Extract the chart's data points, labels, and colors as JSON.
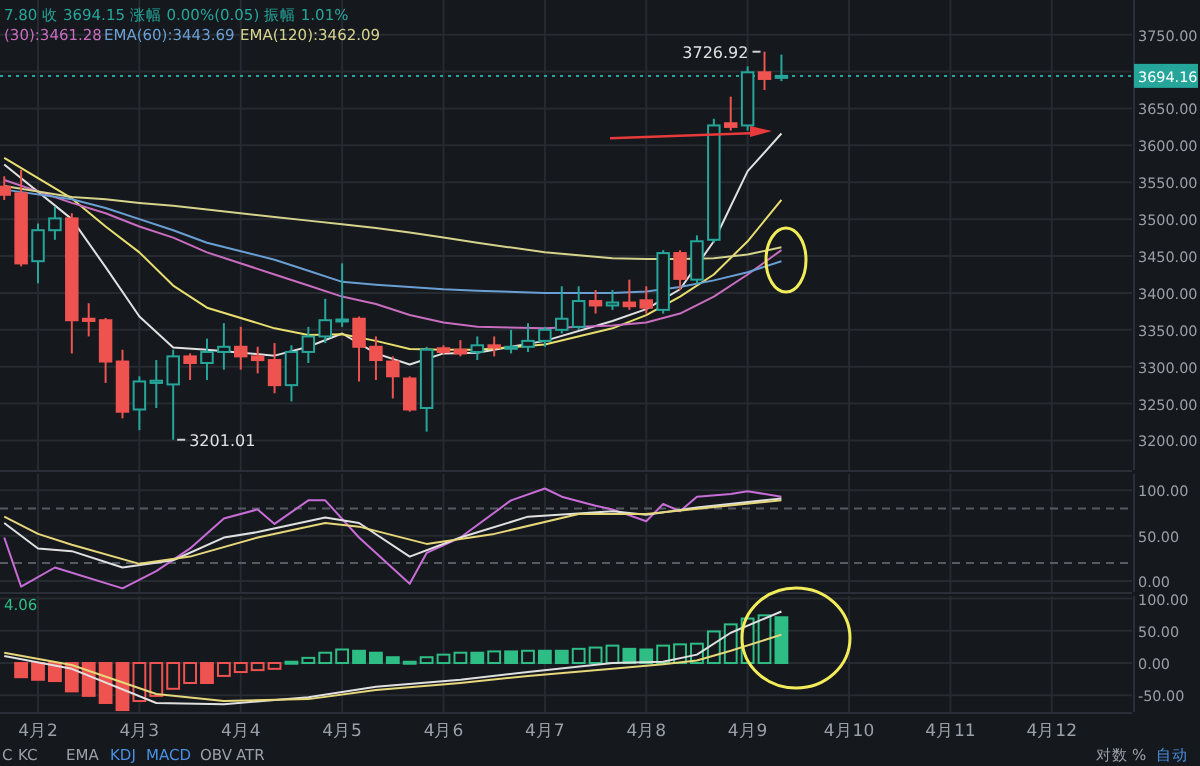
{
  "chart_data": [
    {
      "type": "candlestick",
      "x": [
        "--04-01T16:00",
        "--04-01T20:00",
        "--04-02T00:00",
        "--04-02T04:00",
        "--04-02T08:00",
        "--04-02T12:00",
        "--04-02T16:00",
        "--04-02T20:00",
        "--04-03T00:00",
        "--04-03T04:00",
        "--04-03T08:00",
        "--04-03T12:00",
        "--04-03T16:00",
        "--04-03T20:00",
        "--04-04T00:00",
        "--04-04T04:00",
        "--04-04T08:00",
        "--04-04T12:00",
        "--04-04T16:00",
        "--04-04T20:00",
        "--04-05T00:00",
        "--04-05T04:00",
        "--04-05T08:00",
        "--04-05T12:00",
        "--04-05T16:00",
        "--04-05T20:00",
        "--04-06T00:00",
        "--04-06T04:00",
        "--04-06T08:00",
        "--04-06T12:00",
        "--04-06T16:00",
        "--04-06T20:00",
        "--04-07T00:00",
        "--04-07T04:00",
        "--04-07T08:00",
        "--04-07T12:00",
        "--04-07T16:00",
        "--04-07T20:00",
        "--04-08T00:00",
        "--04-08T04:00",
        "--04-08T08:00",
        "--04-08T12:00",
        "--04-08T16:00",
        "--04-08T20:00",
        "--04-09T00:00",
        "--04-09T04:00",
        "--04-09T08:00"
      ],
      "ohlc": [
        [
          3544,
          3558,
          3526,
          3533
        ],
        [
          3535,
          3567,
          3436,
          3440
        ],
        [
          3443,
          3494,
          3413,
          3485
        ],
        [
          3485,
          3517,
          3472,
          3501
        ],
        [
          3501,
          3508,
          3318,
          3363
        ],
        [
          3365,
          3386,
          3341,
          3362
        ],
        [
          3363,
          3366,
          3278,
          3307
        ],
        [
          3307,
          3323,
          3230,
          3239
        ],
        [
          3242,
          3287,
          3214,
          3280
        ],
        [
          3278,
          3309,
          3244,
          3281
        ],
        [
          3276,
          3323,
          3201.01,
          3314
        ],
        [
          3314,
          3318,
          3282,
          3305
        ],
        [
          3305,
          3338,
          3282,
          3320
        ],
        [
          3320,
          3359,
          3296,
          3327
        ],
        [
          3327,
          3354,
          3296,
          3314
        ],
        [
          3314,
          3327,
          3291,
          3309
        ],
        [
          3309,
          3332,
          3264,
          3275
        ],
        [
          3275,
          3329,
          3253,
          3320
        ],
        [
          3320,
          3354,
          3305,
          3341
        ],
        [
          3341,
          3392,
          3332,
          3363
        ],
        [
          3362,
          3440,
          3354,
          3364
        ],
        [
          3365,
          3368,
          3280,
          3327
        ],
        [
          3327,
          3341,
          3282,
          3309
        ],
        [
          3307,
          3314,
          3257,
          3287
        ],
        [
          3284,
          3287,
          3239,
          3242
        ],
        [
          3244,
          3327,
          3212,
          3323
        ],
        [
          3325,
          3329,
          3317,
          3320
        ],
        [
          3323,
          3336,
          3314,
          3318
        ],
        [
          3320,
          3341,
          3309,
          3329
        ],
        [
          3329,
          3341,
          3314,
          3326
        ],
        [
          3326,
          3350,
          3318,
          3327
        ],
        [
          3327,
          3359,
          3320,
          3335
        ],
        [
          3335,
          3354,
          3327,
          3350
        ],
        [
          3350,
          3409,
          3345,
          3365
        ],
        [
          3354,
          3409,
          3350,
          3389
        ],
        [
          3389,
          3404,
          3372,
          3383
        ],
        [
          3383,
          3404,
          3377,
          3387
        ],
        [
          3387,
          3418,
          3377,
          3382
        ],
        [
          3390,
          3409,
          3372,
          3380
        ],
        [
          3377,
          3458,
          3372,
          3454
        ],
        [
          3454,
          3458,
          3404,
          3419
        ],
        [
          3418,
          3478,
          3412,
          3470
        ],
        [
          3472,
          3636,
          3468,
          3627
        ],
        [
          3630,
          3666,
          3620,
          3625
        ],
        [
          3627,
          3707,
          3620,
          3699
        ],
        [
          3699,
          3726.92,
          3675,
          3690
        ],
        [
          3693,
          3723,
          3687,
          3694.15
        ]
      ],
      "colors": [
        "#ef5350",
        "#ef5350",
        "#26a69a",
        "#26a69a",
        "#ef5350",
        "#ef5350",
        "#ef5350",
        "#ef5350",
        "#26a69a",
        "#26a69a",
        "#26a69a",
        "#ef5350",
        "#26a69a",
        "#26a69a",
        "#ef5350",
        "#ef5350",
        "#ef5350",
        "#26a69a",
        "#26a69a",
        "#26a69a",
        "#26a69a",
        "#ef5350",
        "#ef5350",
        "#ef5350",
        "#ef5350",
        "#26a69a",
        "#ef5350",
        "#ef5350",
        "#26a69a",
        "#ef5350",
        "#26a69a",
        "#26a69a",
        "#26a69a",
        "#26a69a",
        "#26a69a",
        "#ef5350",
        "#26a69a",
        "#ef5350",
        "#ef5350",
        "#26a69a",
        "#ef5350",
        "#26a69a",
        "#26a69a",
        "#ef5350",
        "#26a69a",
        "#ef5350",
        "#26a69a"
      ],
      "series": [
        {
          "type": "line",
          "color": "#e0e0e0",
          "x": [
            "--04-01T16:00",
            "--04-02T08:00",
            "--04-02T16:00",
            "--04-03T00:00",
            "--04-03T08:00",
            "--04-03T16:00",
            "--04-04T08:00",
            "--04-04T16:00",
            "--04-05T00:00",
            "--04-05T08:00",
            "--04-05T16:00",
            "--04-06T00:00",
            "--04-06T08:00",
            "--04-07T00:00",
            "--04-07T16:00",
            "--04-08T00:00",
            "--04-08T08:00",
            "--04-08T16:00",
            "--04-09T00:00",
            "--04-09T08:00"
          ],
          "values": [
            3574,
            3500,
            3435,
            3368,
            3326,
            3323,
            3315,
            3327,
            3345,
            3318,
            3303,
            3318,
            3319,
            3335,
            3362,
            3378,
            3405,
            3470,
            3565,
            3616
          ]
        },
        {
          "type": "line",
          "color": "#e8de6e",
          "x": [
            "--04-01T16:00",
            "--04-02T08:00",
            "--04-02T16:00",
            "--04-03T00:00",
            "--04-03T08:00",
            "--04-03T16:00",
            "--04-04T08:00",
            "--04-04T16:00",
            "--04-05T00:00",
            "--04-05T08:00",
            "--04-05T16:00",
            "--04-06T00:00",
            "--04-06T08:00",
            "--04-07T00:00",
            "--04-07T16:00",
            "--04-08T00:00",
            "--04-08T08:00",
            "--04-08T16:00",
            "--04-09T00:00",
            "--04-09T08:00"
          ],
          "values": [
            3583,
            3528,
            3490,
            3455,
            3410,
            3380,
            3352,
            3343,
            3344,
            3335,
            3324,
            3323,
            3323,
            3330,
            3352,
            3370,
            3395,
            3425,
            3470,
            3526
          ]
        },
        {
          "type": "line",
          "color": "#c86dbf",
          "x": [
            "--04-01T16:00",
            "--04-02T08:00",
            "--04-02T16:00",
            "--04-03T00:00",
            "--04-03T08:00",
            "--04-03T16:00",
            "--04-04T08:00",
            "--04-04T16:00",
            "--04-05T00:00",
            "--04-05T08:00",
            "--04-05T16:00",
            "--04-06T00:00",
            "--04-06T08:00",
            "--04-07T00:00",
            "--04-07T16:00",
            "--04-08T00:00",
            "--04-08T08:00",
            "--04-08T16:00",
            "--04-09T00:00",
            "--04-09T08:00"
          ],
          "values": [
            3553,
            3522,
            3508,
            3490,
            3475,
            3455,
            3425,
            3410,
            3395,
            3385,
            3370,
            3360,
            3354,
            3352,
            3356,
            3360,
            3372,
            3395,
            3425,
            3458
          ]
        },
        {
          "type": "line",
          "color": "#6a9fd4",
          "x": [
            "--04-01T16:00",
            "--04-02T08:00",
            "--04-02T16:00",
            "--04-03T00:00",
            "--04-03T08:00",
            "--04-03T16:00",
            "--04-04T08:00",
            "--04-04T16:00",
            "--04-05T00:00",
            "--04-05T08:00",
            "--04-05T16:00",
            "--04-06T00:00",
            "--04-06T08:00",
            "--04-07T00:00",
            "--04-07T16:00",
            "--04-08T00:00",
            "--04-08T08:00",
            "--04-08T16:00",
            "--04-09T00:00",
            "--04-09T08:00"
          ],
          "values": [
            3540,
            3527,
            3515,
            3500,
            3485,
            3468,
            3445,
            3430,
            3415,
            3411,
            3408,
            3405,
            3403,
            3400,
            3400,
            3402,
            3408,
            3417,
            3428,
            3443
          ]
        },
        {
          "type": "line",
          "color": "#d6d38c",
          "x": [
            "--04-01T16:00",
            "--04-02T08:00",
            "--04-02T16:00",
            "--04-03T00:00",
            "--04-03T08:00",
            "--04-03T16:00",
            "--04-04T08:00",
            "--04-04T16:00",
            "--04-05T00:00",
            "--04-05T08:00",
            "--04-05T16:00",
            "--04-06T00:00",
            "--04-06T08:00",
            "--04-07T00:00",
            "--04-07T16:00",
            "--04-08T00:00",
            "--04-08T08:00",
            "--04-08T16:00",
            "--04-09T00:00",
            "--04-09T08:00"
          ],
          "values": [
            3545,
            3530,
            3527,
            3522,
            3518,
            3513,
            3503,
            3498,
            3493,
            3488,
            3482,
            3475,
            3468,
            3455,
            3447,
            3446,
            3446,
            3447,
            3452,
            3462
          ]
        }
      ],
      "xlim": [
        "--04-01T15:00",
        "--04-12T19:00"
      ],
      "ylim": [
        3160,
        3797
      ],
      "xticks": [
        {
          "value": "--04-02",
          "label": null
        },
        {
          "value": "--04-03",
          "label": null
        },
        {
          "value": "--04-04",
          "label": null
        },
        {
          "value": "--04-05",
          "label": null
        },
        {
          "value": "--04-06",
          "label": null
        },
        {
          "value": "--04-07",
          "label": null
        },
        {
          "value": "--04-08",
          "label": null
        },
        {
          "value": "--04-09",
          "label": null
        },
        {
          "value": "--04-10",
          "label": null
        },
        {
          "value": "--04-11",
          "label": null
        },
        {
          "value": "--04-12",
          "label": null
        }
      ],
      "yticks": [
        {
          "value": 3200,
          "label": "3200.00"
        },
        {
          "value": 3250,
          "label": "3250.00"
        },
        {
          "value": 3300,
          "label": "3300.00"
        },
        {
          "value": 3350,
          "label": "3350.00"
        },
        {
          "value": 3400,
          "label": "3400.00"
        },
        {
          "value": 3450,
          "label": "3450.00"
        },
        {
          "value": 3500,
          "label": "3500.00"
        },
        {
          "value": 3550,
          "label": "3550.00"
        },
        {
          "value": 3600,
          "label": "3600.00"
        },
        {
          "value": 3650,
          "label": "3650.00"
        },
        {
          "value": 3700,
          "label": null
        },
        {
          "value": 3750,
          "label": "3750.00"
        }
      ],
      "ref_lines": [
        {
          "axis": "y",
          "value": 3694.16,
          "label": "3694.16",
          "color": "#26a69a",
          "line_style": "dotted"
        }
      ],
      "annotations": [
        "7.80 收 3694.15 涨幅 0.00%(0.05) 振幅 1.01%",
        "(30):3461.28",
        "EMA(60):3443.69",
        "EMA(120):3462.09",
        {
          "text": "3726.92",
          "x": "--04-09T04:00",
          "y": 3726.92
        },
        {
          "text": "3201.01",
          "x": "--04-03T08:00",
          "y": 3201.01
        }
      ],
      "grid": true,
      "tick_labels": "y"
    },
    {
      "type": "line",
      "series": [
        {
          "color": "#c86dd7",
          "x": [
            "--04-01T16:00",
            "--04-01T20:00",
            "--04-02T04:00",
            "--04-02T20:00",
            "--04-03T04:00",
            "--04-03T12:00",
            "--04-03T20:00",
            "--04-04T04:00",
            "--04-04T08:00",
            "--04-04T16:00",
            "--04-04T20:00",
            "--04-05T04:00",
            "--04-05T16:00",
            "--04-05T20:00",
            "--04-06T04:00",
            "--04-06T16:00",
            "--04-07T00:00",
            "--04-07T04:00",
            "--04-07T12:00",
            "--04-07T16:00",
            "--04-08T00:00",
            "--04-08T04:00",
            "--04-08T08:00",
            "--04-08T12:00",
            "--04-08T20:00",
            "--04-09T00:00",
            "--04-09T08:00"
          ],
          "values": [
            48,
            -6,
            15,
            -8,
            11,
            36,
            69,
            79,
            63,
            89,
            89,
            48,
            -3,
            31,
            48,
            89,
            102,
            93,
            83,
            79,
            66,
            85,
            77,
            93,
            96,
            99,
            93
          ]
        },
        {
          "color": "#e0e0e0",
          "x": [
            "--04-01T16:00",
            "--04-02T00:00",
            "--04-02T08:00",
            "--04-02T20:00",
            "--04-03T08:00",
            "--04-03T20:00",
            "--04-04T04:00",
            "--04-04T20:00",
            "--04-05T04:00",
            "--04-05T16:00",
            "--04-06T04:00",
            "--04-06T20:00",
            "--04-07T16:00",
            "--04-08T00:00",
            "--04-08T12:00",
            "--04-09T08:00"
          ],
          "values": [
            64,
            36,
            33,
            15,
            23,
            48,
            54,
            70,
            64,
            27,
            48,
            71,
            77,
            73,
            81,
            91
          ]
        },
        {
          "color": "#e6d77a",
          "x": [
            "--04-01T16:00",
            "--04-02T00:00",
            "--04-02T08:00",
            "--04-03T00:00",
            "--04-03T12:00",
            "--04-04T04:00",
            "--04-04T20:00",
            "--04-05T04:00",
            "--04-05T20:00",
            "--04-06T12:00",
            "--04-07T08:00",
            "--04-08T00:00",
            "--04-09T08:00"
          ],
          "values": [
            71,
            52,
            40,
            19,
            27,
            48,
            64,
            60,
            41,
            52,
            74,
            74,
            89
          ]
        }
      ],
      "xlim": [
        "--04-01T15:00",
        "--04-12T19:00"
      ],
      "ylim": [
        -12,
        118
      ],
      "xticks": [
        {
          "value": "--04-02",
          "label": null
        },
        {
          "value": "--04-03",
          "label": null
        },
        {
          "value": "--04-04",
          "label": null
        },
        {
          "value": "--04-05",
          "label": null
        },
        {
          "value": "--04-06",
          "label": null
        },
        {
          "value": "--04-07",
          "label": null
        },
        {
          "value": "--04-08",
          "label": null
        },
        {
          "value": "--04-09",
          "label": null
        },
        {
          "value": "--04-10",
          "label": null
        },
        {
          "value": "--04-11",
          "label": null
        },
        {
          "value": "--04-12",
          "label": null
        }
      ],
      "yticks": [
        {
          "value": 0,
          "label": "0.00"
        },
        {
          "value": 50,
          "label": "50.00"
        },
        {
          "value": 100,
          "label": "100.00"
        }
      ],
      "ref_lines": [
        {
          "axis": "y",
          "value": 80,
          "color": "#555a63",
          "line_style": "dashed"
        },
        {
          "axis": "y",
          "value": 20,
          "color": "#555a63",
          "line_style": "dashed"
        }
      ],
      "grid": true,
      "tick_labels": "y"
    },
    {
      "type": "bar",
      "x": [
        "--04-01T20:00",
        "--04-02T00:00",
        "--04-02T04:00",
        "--04-02T08:00",
        "--04-02T12:00",
        "--04-02T16:00",
        "--04-02T20:00",
        "--04-03T00:00",
        "--04-03T04:00",
        "--04-03T08:00",
        "--04-03T12:00",
        "--04-03T16:00",
        "--04-03T20:00",
        "--04-04T00:00",
        "--04-04T04:00",
        "--04-04T08:00",
        "--04-04T12:00",
        "--04-04T16:00",
        "--04-04T20:00",
        "--04-05T00:00",
        "--04-05T04:00",
        "--04-05T08:00",
        "--04-05T12:00",
        "--04-05T16:00",
        "--04-05T20:00",
        "--04-06T00:00",
        "--04-06T04:00",
        "--04-06T08:00",
        "--04-06T12:00",
        "--04-06T16:00",
        "--04-06T20:00",
        "--04-07T00:00",
        "--04-07T04:00",
        "--04-07T08:00",
        "--04-07T12:00",
        "--04-07T16:00",
        "--04-07T20:00",
        "--04-08T00:00",
        "--04-08T04:00",
        "--04-08T08:00",
        "--04-08T12:00",
        "--04-08T16:00",
        "--04-08T20:00",
        "--04-09T00:00",
        "--04-09T04:00",
        "--04-09T08:00"
      ],
      "values": [
        -22,
        -26,
        -28,
        -44,
        -51,
        -62,
        -73,
        -59,
        -51,
        -40,
        -31,
        -31,
        -20,
        -14,
        -11,
        -9,
        2,
        8,
        16,
        21,
        19,
        16,
        9,
        2,
        9,
        13,
        16,
        16,
        18,
        18,
        19,
        19,
        19,
        22,
        24,
        27,
        22,
        21,
        27,
        29,
        30,
        49,
        60,
        69,
        74,
        71
      ],
      "colors": [
        "#ef5350",
        "#ef5350",
        "#ef5350",
        "#ef5350",
        "#ef5350",
        "#ef5350",
        "#ef5350",
        "#ef5350",
        "#ef5350",
        "#ef5350",
        "#ef5350",
        "#ef5350",
        "#ef5350",
        "#ef5350",
        "#ef5350",
        "#ef5350",
        "#2ebd85",
        "#2ebd85",
        "#2ebd85",
        "#2ebd85",
        "#2ebd85",
        "#2ebd85",
        "#2ebd85",
        "#2ebd85",
        "#2ebd85",
        "#2ebd85",
        "#2ebd85",
        "#2ebd85",
        "#2ebd85",
        "#2ebd85",
        "#2ebd85",
        "#2ebd85",
        "#2ebd85",
        "#2ebd85",
        "#2ebd85",
        "#2ebd85",
        "#2ebd85",
        "#2ebd85",
        "#2ebd85",
        "#2ebd85",
        "#2ebd85",
        "#2ebd85",
        "#2ebd85",
        "#2ebd85",
        "#2ebd85",
        "#2ebd85"
      ],
      "series": [
        {
          "type": "line",
          "color": "#e0e0e0",
          "x": [
            "--04-01T16:00",
            "--04-02T08:00",
            "--04-03T04:00",
            "--04-03T20:00",
            "--04-04T16:00",
            "--04-05T08:00",
            "--04-06T04:00",
            "--04-06T20:00",
            "--04-07T16:00",
            "--04-08T04:00",
            "--04-08T12:00",
            "--04-08T20:00",
            "--04-09T08:00"
          ],
          "values": [
            11,
            -9,
            -62,
            -64,
            -53,
            -37,
            -26,
            -14,
            0,
            2,
            13,
            47,
            80
          ]
        },
        {
          "type": "line",
          "color": "#e6d77a",
          "x": [
            "--04-01T16:00",
            "--04-02T08:00",
            "--04-03T04:00",
            "--04-03T20:00",
            "--04-04T16:00",
            "--04-05T08:00",
            "--04-06T04:00",
            "--04-06T20:00",
            "--04-07T16:00",
            "--04-08T04:00",
            "--04-08T12:00",
            "--04-08T20:00",
            "--04-09T08:00"
          ],
          "values": [
            16,
            -3,
            -48,
            -59,
            -56,
            -42,
            -31,
            -20,
            -9,
            -2,
            4,
            19,
            44
          ]
        }
      ],
      "xlim": [
        "--04-01T15:00",
        "--04-12T19:00"
      ],
      "ylim": [
        -76,
        104
      ],
      "xticks": [
        {
          "value": "--04-02",
          "label": "4月2"
        },
        {
          "value": "--04-03",
          "label": "4月3"
        },
        {
          "value": "--04-04",
          "label": "4月4"
        },
        {
          "value": "--04-05",
          "label": "4月5"
        },
        {
          "value": "--04-06",
          "label": "4月6"
        },
        {
          "value": "--04-07",
          "label": "4月7"
        },
        {
          "value": "--04-08",
          "label": "4月8"
        },
        {
          "value": "--04-09",
          "label": "4月9"
        },
        {
          "value": "--04-10",
          "label": "4月10"
        },
        {
          "value": "--04-11",
          "label": "4月11"
        },
        {
          "value": "--04-12",
          "label": "4月12"
        }
      ],
      "yticks": [
        {
          "value": -50,
          "label": "-50.00"
        },
        {
          "value": 0,
          "label": "0.00"
        },
        {
          "value": 50,
          "label": "50.00"
        },
        {
          "value": 100,
          "label": "100.00"
        }
      ],
      "annotations": [
        "4.06",
        "C",
        "KC",
        "EMA",
        "KDJ",
        "MACD",
        "OBV",
        "ATR",
        "对数",
        "%",
        "自动"
      ],
      "grid": true
    }
  ]
}
